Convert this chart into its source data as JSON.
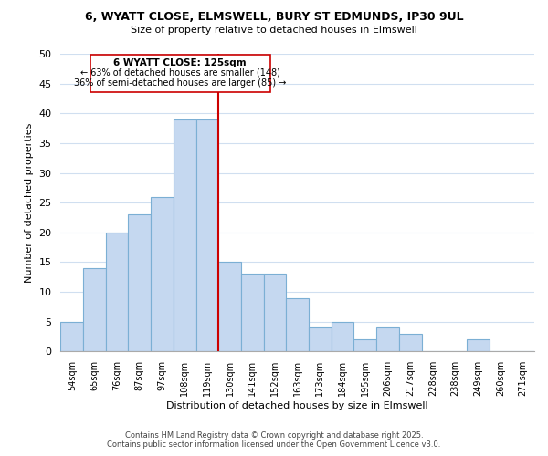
{
  "title": "6, WYATT CLOSE, ELMSWELL, BURY ST EDMUNDS, IP30 9UL",
  "subtitle": "Size of property relative to detached houses in Elmswell",
  "xlabel": "Distribution of detached houses by size in Elmswell",
  "ylabel": "Number of detached properties",
  "bin_labels": [
    "54sqm",
    "65sqm",
    "76sqm",
    "87sqm",
    "97sqm",
    "108sqm",
    "119sqm",
    "130sqm",
    "141sqm",
    "152sqm",
    "163sqm",
    "173sqm",
    "184sqm",
    "195sqm",
    "206sqm",
    "217sqm",
    "228sqm",
    "238sqm",
    "249sqm",
    "260sqm",
    "271sqm"
  ],
  "bar_heights": [
    5,
    14,
    20,
    23,
    26,
    39,
    39,
    15,
    13,
    13,
    9,
    4,
    5,
    2,
    4,
    3,
    0,
    0,
    2,
    0,
    0
  ],
  "bar_color": "#c5d8f0",
  "bar_edge_color": "#7bafd4",
  "highlight_line_color": "#cc0000",
  "ylim": [
    0,
    50
  ],
  "yticks": [
    0,
    5,
    10,
    15,
    20,
    25,
    30,
    35,
    40,
    45,
    50
  ],
  "annotation_title": "6 WYATT CLOSE: 125sqm",
  "annotation_line1": "← 63% of detached houses are smaller (148)",
  "annotation_line2": "36% of semi-detached houses are larger (85) →",
  "footer_line1": "Contains HM Land Registry data © Crown copyright and database right 2025.",
  "footer_line2": "Contains public sector information licensed under the Open Government Licence v3.0.",
  "background_color": "#ffffff",
  "grid_color": "#d0dff0"
}
